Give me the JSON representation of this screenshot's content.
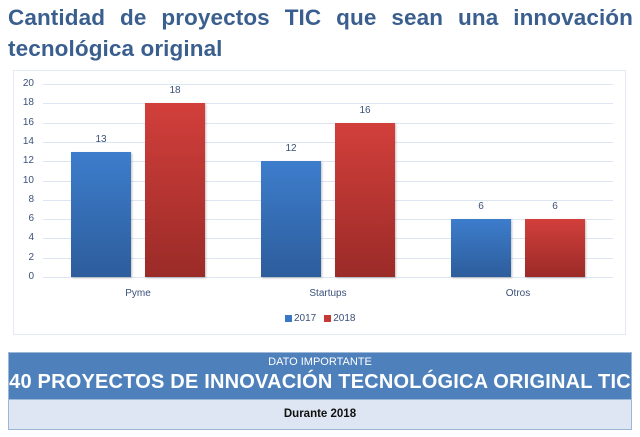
{
  "title": "Cantidad de proyectos TIC que sean una innovación tecnológica original",
  "chart_data": {
    "type": "bar",
    "title": "Cantidad de proyectos TIC que sean una innovación tecnológica original",
    "categories": [
      "Pyme",
      "Startups",
      "Otros"
    ],
    "series": [
      {
        "name": "2017",
        "values": [
          13,
          12,
          6
        ],
        "color": "#3a78c4"
      },
      {
        "name": "2018",
        "values": [
          18,
          16,
          6
        ],
        "color": "#c43a36"
      }
    ],
    "xlabel": "",
    "ylabel": "",
    "ylim": [
      0,
      20
    ],
    "yticks": [
      0,
      2,
      4,
      6,
      8,
      10,
      12,
      14,
      16,
      18,
      20
    ],
    "grid": true,
    "legend_position": "bottom",
    "data_labels": true
  },
  "callout": {
    "kicker": "DATO IMPORTANTE",
    "headline": "40 PROYECTOS DE INNOVACIÓN TECNOLÓGICA ORIGINAL TIC",
    "footer": "Durante 2018",
    "colors": {
      "header_bg": "#4e80bc",
      "footer_bg": "#dde6f2"
    }
  }
}
